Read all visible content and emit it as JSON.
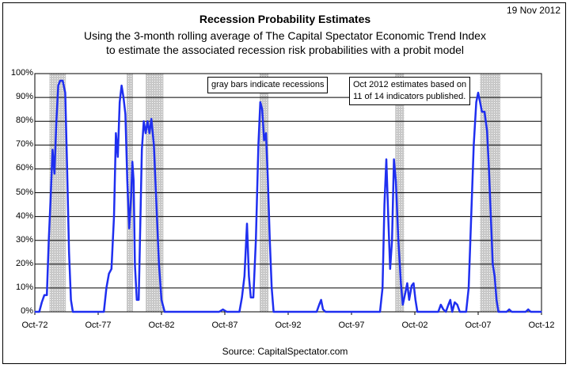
{
  "date_stamp": "19 Nov 2012",
  "source": "Source:  CapitalSpectator.com",
  "annotations": {
    "recessions_note": "gray bars indicate recessions",
    "estimate_note_1": "Oct 2012 estimates based on",
    "estimate_note_2": "11 of 14 indicators published."
  },
  "colors": {
    "series": "#1f2ff0",
    "recession_bar": "#c8c8c8",
    "grid": "#000000"
  },
  "chart_data": {
    "type": "line",
    "title": "Recession Probability Estimates",
    "subtitle_1": "Using the 3-month rolling average of The Capital Spectator Economic Trend Index",
    "subtitle_2": "to estimate the associated recession risk probabilities with a probit model",
    "ylim": [
      0,
      100
    ],
    "xlim": [
      1972.75,
      2012.75
    ],
    "grid": true,
    "y_ticks": [
      "0%",
      "10%",
      "20%",
      "30%",
      "40%",
      "50%",
      "60%",
      "70%",
      "80%",
      "90%",
      "100%"
    ],
    "x_ticks": [
      {
        "label": "Oct-72",
        "x": 1972.75
      },
      {
        "label": "Oct-77",
        "x": 1977.75
      },
      {
        "label": "Oct-82",
        "x": 1982.75
      },
      {
        "label": "Oct-87",
        "x": 1987.75
      },
      {
        "label": "Oct-92",
        "x": 1992.75
      },
      {
        "label": "Oct-97",
        "x": 1997.75
      },
      {
        "label": "Oct-02",
        "x": 2002.75
      },
      {
        "label": "Oct-07",
        "x": 2007.75
      },
      {
        "label": "Oct-12",
        "x": 2012.75
      }
    ],
    "recessions": [
      [
        1973.9,
        1975.2
      ],
      [
        1980.0,
        1980.5
      ],
      [
        1981.5,
        1982.9
      ],
      [
        1990.5,
        1991.2
      ],
      [
        2001.2,
        2001.9
      ],
      [
        2007.9,
        2009.5
      ]
    ],
    "series": [
      {
        "points": [
          [
            1972.75,
            0
          ],
          [
            1973.1,
            0
          ],
          [
            1973.3,
            4
          ],
          [
            1973.5,
            7
          ],
          [
            1973.7,
            7
          ],
          [
            1973.85,
            30
          ],
          [
            1974.0,
            48
          ],
          [
            1974.15,
            68
          ],
          [
            1974.3,
            58
          ],
          [
            1974.45,
            80
          ],
          [
            1974.6,
            95
          ],
          [
            1974.75,
            97
          ],
          [
            1974.95,
            97
          ],
          [
            1975.15,
            92
          ],
          [
            1975.3,
            60
          ],
          [
            1975.45,
            25
          ],
          [
            1975.6,
            5
          ],
          [
            1975.75,
            0
          ],
          [
            1977.5,
            0
          ],
          [
            1977.9,
            0
          ],
          [
            1978.2,
            0
          ],
          [
            1978.4,
            10
          ],
          [
            1978.6,
            16
          ],
          [
            1978.8,
            18
          ],
          [
            1979.0,
            40
          ],
          [
            1979.15,
            75
          ],
          [
            1979.3,
            65
          ],
          [
            1979.45,
            88
          ],
          [
            1979.6,
            95
          ],
          [
            1979.75,
            90
          ],
          [
            1979.9,
            83
          ],
          [
            1980.05,
            55
          ],
          [
            1980.2,
            35
          ],
          [
            1980.35,
            48
          ],
          [
            1980.45,
            63
          ],
          [
            1980.55,
            55
          ],
          [
            1980.65,
            20
          ],
          [
            1980.8,
            5
          ],
          [
            1980.95,
            5
          ],
          [
            1981.05,
            30
          ],
          [
            1981.2,
            68
          ],
          [
            1981.35,
            80
          ],
          [
            1981.5,
            75
          ],
          [
            1981.65,
            80
          ],
          [
            1981.8,
            75
          ],
          [
            1981.95,
            81
          ],
          [
            1982.15,
            70
          ],
          [
            1982.35,
            45
          ],
          [
            1982.55,
            20
          ],
          [
            1982.75,
            5
          ],
          [
            1983.0,
            0
          ],
          [
            1984.5,
            0
          ],
          [
            1987.3,
            0
          ],
          [
            1987.6,
            1
          ],
          [
            1987.9,
            0
          ],
          [
            1988.9,
            0
          ],
          [
            1989.1,
            6
          ],
          [
            1989.3,
            15
          ],
          [
            1989.5,
            37
          ],
          [
            1989.65,
            15
          ],
          [
            1989.8,
            6
          ],
          [
            1990.0,
            6
          ],
          [
            1990.2,
            30
          ],
          [
            1990.4,
            70
          ],
          [
            1990.55,
            88
          ],
          [
            1990.7,
            85
          ],
          [
            1990.85,
            72
          ],
          [
            1991.0,
            75
          ],
          [
            1991.15,
            55
          ],
          [
            1991.3,
            30
          ],
          [
            1991.45,
            10
          ],
          [
            1991.6,
            0
          ],
          [
            1995.0,
            0
          ],
          [
            1995.2,
            3
          ],
          [
            1995.35,
            5
          ],
          [
            1995.5,
            1
          ],
          [
            1995.7,
            0
          ],
          [
            2000.0,
            0
          ],
          [
            2000.2,
            10
          ],
          [
            2000.35,
            45
          ],
          [
            2000.5,
            64
          ],
          [
            2000.65,
            40
          ],
          [
            2000.8,
            18
          ],
          [
            2000.95,
            30
          ],
          [
            2001.1,
            64
          ],
          [
            2001.25,
            55
          ],
          [
            2001.45,
            30
          ],
          [
            2001.65,
            12
          ],
          [
            2001.8,
            3
          ],
          [
            2002.0,
            8
          ],
          [
            2002.15,
            12
          ],
          [
            2002.3,
            5
          ],
          [
            2002.5,
            11
          ],
          [
            2002.65,
            12
          ],
          [
            2002.8,
            5
          ],
          [
            2002.95,
            0
          ],
          [
            2004.6,
            0
          ],
          [
            2004.8,
            3
          ],
          [
            2005.0,
            1
          ],
          [
            2005.2,
            0
          ],
          [
            2005.4,
            3
          ],
          [
            2005.55,
            5
          ],
          [
            2005.7,
            0
          ],
          [
            2005.9,
            4
          ],
          [
            2006.1,
            3
          ],
          [
            2006.3,
            0
          ],
          [
            2006.8,
            0
          ],
          [
            2007.0,
            10
          ],
          [
            2007.2,
            40
          ],
          [
            2007.4,
            70
          ],
          [
            2007.6,
            88
          ],
          [
            2007.75,
            92
          ],
          [
            2007.9,
            88
          ],
          [
            2008.05,
            84
          ],
          [
            2008.25,
            84
          ],
          [
            2008.45,
            76
          ],
          [
            2008.6,
            60
          ],
          [
            2008.75,
            40
          ],
          [
            2008.9,
            20
          ],
          [
            2009.05,
            15
          ],
          [
            2009.2,
            5
          ],
          [
            2009.35,
            0
          ],
          [
            2010.0,
            0
          ],
          [
            2010.2,
            1
          ],
          [
            2010.4,
            0
          ],
          [
            2011.5,
            0
          ],
          [
            2011.7,
            1
          ],
          [
            2011.9,
            0
          ],
          [
            2012.5,
            0
          ],
          [
            2012.75,
            0
          ]
        ]
      }
    ]
  }
}
